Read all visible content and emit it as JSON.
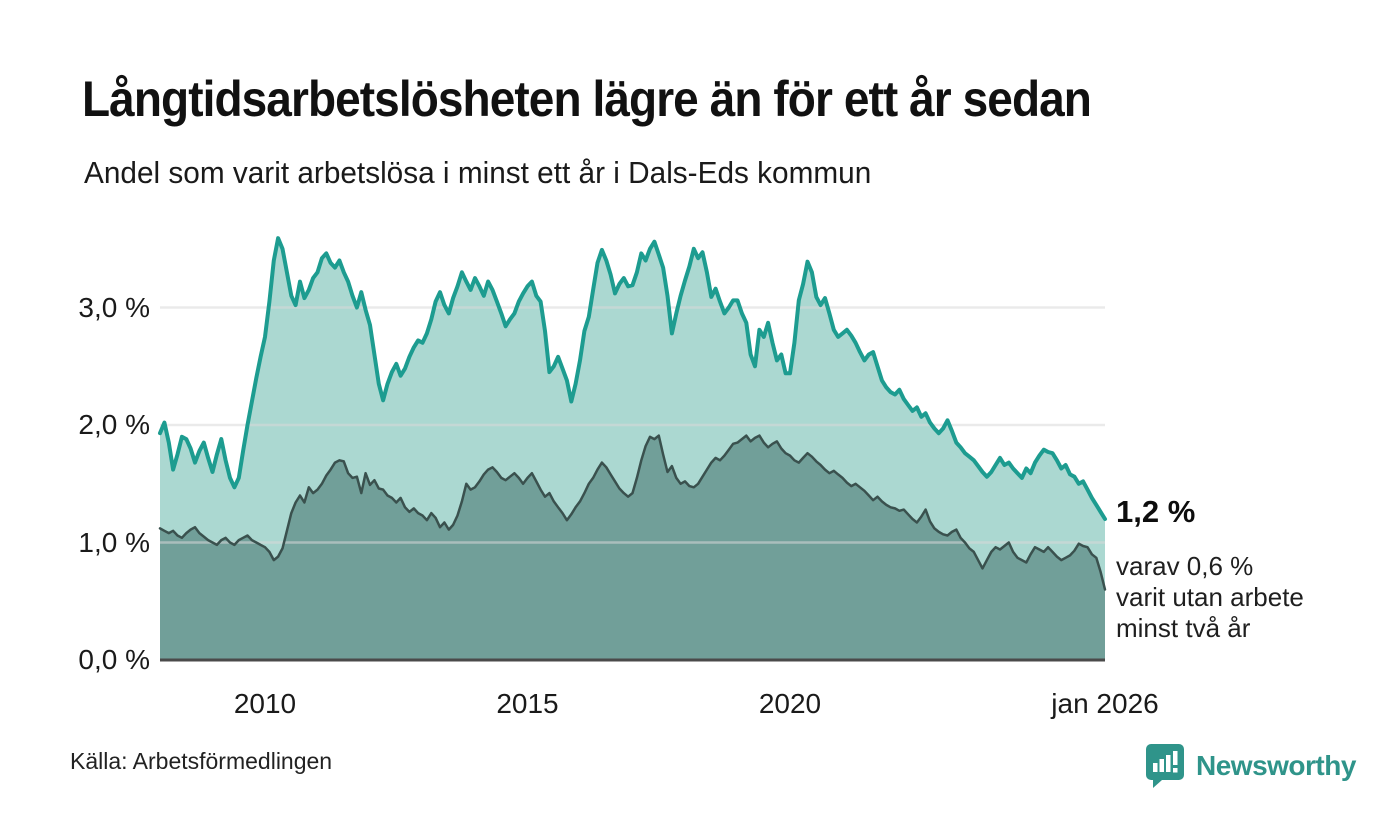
{
  "header": {
    "title": "Långtidsarbetslösheten lägre än för ett år sedan",
    "subtitle": "Andel som varit arbetslösa i minst ett år i Dals-Eds kommun"
  },
  "chart_data": {
    "type": "area",
    "title": "Långtidsarbetslösheten lägre än för ett år sedan",
    "subtitle": "Andel som varit arbetslösa i minst ett år i Dals-Eds kommun",
    "x_start": "jan 2008",
    "x_end": "jan 2026",
    "x_interval": "monthly",
    "ylim": [
      0,
      3.75
    ],
    "grid_on": true,
    "grid_color": "#d9d9d9",
    "axis_color": "#4a4a4a",
    "yticks": [
      {
        "label": "0,0 %",
        "value": 0.0
      },
      {
        "label": "1,0 %",
        "value": 1.0
      },
      {
        "label": "2,0 %",
        "value": 2.0
      },
      {
        "label": "3,0 %",
        "value": 3.0
      }
    ],
    "xticks": [
      {
        "label": "2010",
        "year": 2010
      },
      {
        "label": "2015",
        "year": 2015
      },
      {
        "label": "2020",
        "year": 2020
      },
      {
        "label": "jan 2026",
        "year": 2026
      }
    ],
    "series": [
      {
        "name": "minst ett år",
        "line_color": "#1d9c90",
        "fill_color": "#abd8d1",
        "line_width": 4,
        "end_value": 1.2,
        "values": [
          1.93,
          2.02,
          1.85,
          1.62,
          1.75,
          1.9,
          1.88,
          1.8,
          1.68,
          1.78,
          1.85,
          1.72,
          1.6,
          1.75,
          1.88,
          1.7,
          1.55,
          1.47,
          1.55,
          1.78,
          2.0,
          2.2,
          2.4,
          2.58,
          2.75,
          3.05,
          3.4,
          3.59,
          3.5,
          3.3,
          3.1,
          3.02,
          3.22,
          3.08,
          3.15,
          3.25,
          3.3,
          3.42,
          3.46,
          3.38,
          3.34,
          3.4,
          3.3,
          3.22,
          3.1,
          3.0,
          3.13,
          2.98,
          2.85,
          2.6,
          2.35,
          2.21,
          2.35,
          2.45,
          2.52,
          2.42,
          2.48,
          2.58,
          2.66,
          2.72,
          2.7,
          2.78,
          2.9,
          3.05,
          3.13,
          3.02,
          2.95,
          3.08,
          3.18,
          3.3,
          3.22,
          3.15,
          3.25,
          3.18,
          3.1,
          3.22,
          3.15,
          3.05,
          2.95,
          2.84,
          2.9,
          2.95,
          3.05,
          3.12,
          3.18,
          3.22,
          3.1,
          3.05,
          2.8,
          2.45,
          2.5,
          2.58,
          2.48,
          2.38,
          2.2,
          2.35,
          2.55,
          2.8,
          2.92,
          3.15,
          3.38,
          3.49,
          3.4,
          3.28,
          3.12,
          3.2,
          3.25,
          3.18,
          3.19,
          3.3,
          3.46,
          3.4,
          3.5,
          3.56,
          3.45,
          3.34,
          3.1,
          2.78,
          2.95,
          3.1,
          3.23,
          3.35,
          3.5,
          3.42,
          3.47,
          3.3,
          3.09,
          3.16,
          3.05,
          2.95,
          3.0,
          3.06,
          3.06,
          2.95,
          2.87,
          2.6,
          2.5,
          2.81,
          2.75,
          2.87,
          2.7,
          2.55,
          2.6,
          2.44,
          2.44,
          2.7,
          3.06,
          3.2,
          3.39,
          3.3,
          3.09,
          3.02,
          3.08,
          2.95,
          2.81,
          2.75,
          2.78,
          2.81,
          2.76,
          2.7,
          2.62,
          2.55,
          2.6,
          2.62,
          2.5,
          2.38,
          2.32,
          2.28,
          2.26,
          2.3,
          2.22,
          2.17,
          2.12,
          2.15,
          2.07,
          2.1,
          2.02,
          1.97,
          1.93,
          1.97,
          2.04,
          1.95,
          1.85,
          1.81,
          1.76,
          1.73,
          1.7,
          1.65,
          1.6,
          1.56,
          1.6,
          1.66,
          1.72,
          1.66,
          1.68,
          1.63,
          1.59,
          1.55,
          1.63,
          1.59,
          1.68,
          1.74,
          1.79,
          1.77,
          1.76,
          1.7,
          1.63,
          1.66,
          1.58,
          1.56,
          1.5,
          1.52,
          1.45,
          1.38,
          1.32,
          1.26,
          1.2
        ]
      },
      {
        "name": "varav minst två år",
        "line_color": "#3a514e",
        "fill_color": "#719f99",
        "line_width": 2.5,
        "end_value": 0.6,
        "values": [
          1.12,
          1.1,
          1.08,
          1.1,
          1.06,
          1.04,
          1.08,
          1.11,
          1.13,
          1.08,
          1.05,
          1.02,
          1.0,
          0.98,
          1.02,
          1.04,
          1.0,
          0.98,
          1.02,
          1.04,
          1.06,
          1.02,
          1.0,
          0.98,
          0.96,
          0.92,
          0.85,
          0.88,
          0.95,
          1.1,
          1.25,
          1.34,
          1.4,
          1.34,
          1.47,
          1.42,
          1.45,
          1.5,
          1.57,
          1.62,
          1.68,
          1.7,
          1.69,
          1.59,
          1.55,
          1.56,
          1.42,
          1.59,
          1.49,
          1.53,
          1.46,
          1.45,
          1.4,
          1.38,
          1.34,
          1.38,
          1.3,
          1.26,
          1.29,
          1.25,
          1.23,
          1.19,
          1.25,
          1.21,
          1.13,
          1.17,
          1.11,
          1.15,
          1.23,
          1.35,
          1.5,
          1.45,
          1.47,
          1.52,
          1.58,
          1.62,
          1.64,
          1.6,
          1.55,
          1.53,
          1.56,
          1.59,
          1.55,
          1.5,
          1.55,
          1.59,
          1.52,
          1.45,
          1.39,
          1.42,
          1.35,
          1.3,
          1.25,
          1.19,
          1.24,
          1.3,
          1.35,
          1.42,
          1.5,
          1.55,
          1.62,
          1.68,
          1.64,
          1.58,
          1.52,
          1.46,
          1.42,
          1.39,
          1.42,
          1.55,
          1.7,
          1.82,
          1.9,
          1.88,
          1.91,
          1.75,
          1.6,
          1.65,
          1.55,
          1.5,
          1.52,
          1.48,
          1.47,
          1.5,
          1.56,
          1.62,
          1.68,
          1.72,
          1.7,
          1.74,
          1.79,
          1.84,
          1.85,
          1.88,
          1.91,
          1.86,
          1.89,
          1.91,
          1.85,
          1.81,
          1.84,
          1.86,
          1.8,
          1.76,
          1.74,
          1.7,
          1.68,
          1.72,
          1.76,
          1.73,
          1.69,
          1.66,
          1.62,
          1.59,
          1.61,
          1.58,
          1.55,
          1.51,
          1.48,
          1.5,
          1.47,
          1.44,
          1.4,
          1.36,
          1.39,
          1.35,
          1.32,
          1.3,
          1.29,
          1.27,
          1.28,
          1.24,
          1.2,
          1.17,
          1.22,
          1.28,
          1.18,
          1.12,
          1.09,
          1.07,
          1.06,
          1.09,
          1.11,
          1.04,
          1.0,
          0.95,
          0.92,
          0.85,
          0.78,
          0.85,
          0.92,
          0.96,
          0.94,
          0.97,
          1.0,
          0.92,
          0.87,
          0.85,
          0.83,
          0.9,
          0.96,
          0.94,
          0.92,
          0.96,
          0.92,
          0.88,
          0.85,
          0.87,
          0.89,
          0.93,
          0.99,
          0.97,
          0.96,
          0.9,
          0.87,
          0.75,
          0.6
        ]
      }
    ],
    "annotations": {
      "end_value_label": "1,2 %",
      "note_lines": [
        "varav 0,6 %",
        "varit utan arbete",
        "minst två år"
      ]
    }
  },
  "footer": {
    "source": "Källa: Arbetsförmedlingen",
    "brand": "Newsworthy",
    "brand_color": "#2f948a"
  }
}
